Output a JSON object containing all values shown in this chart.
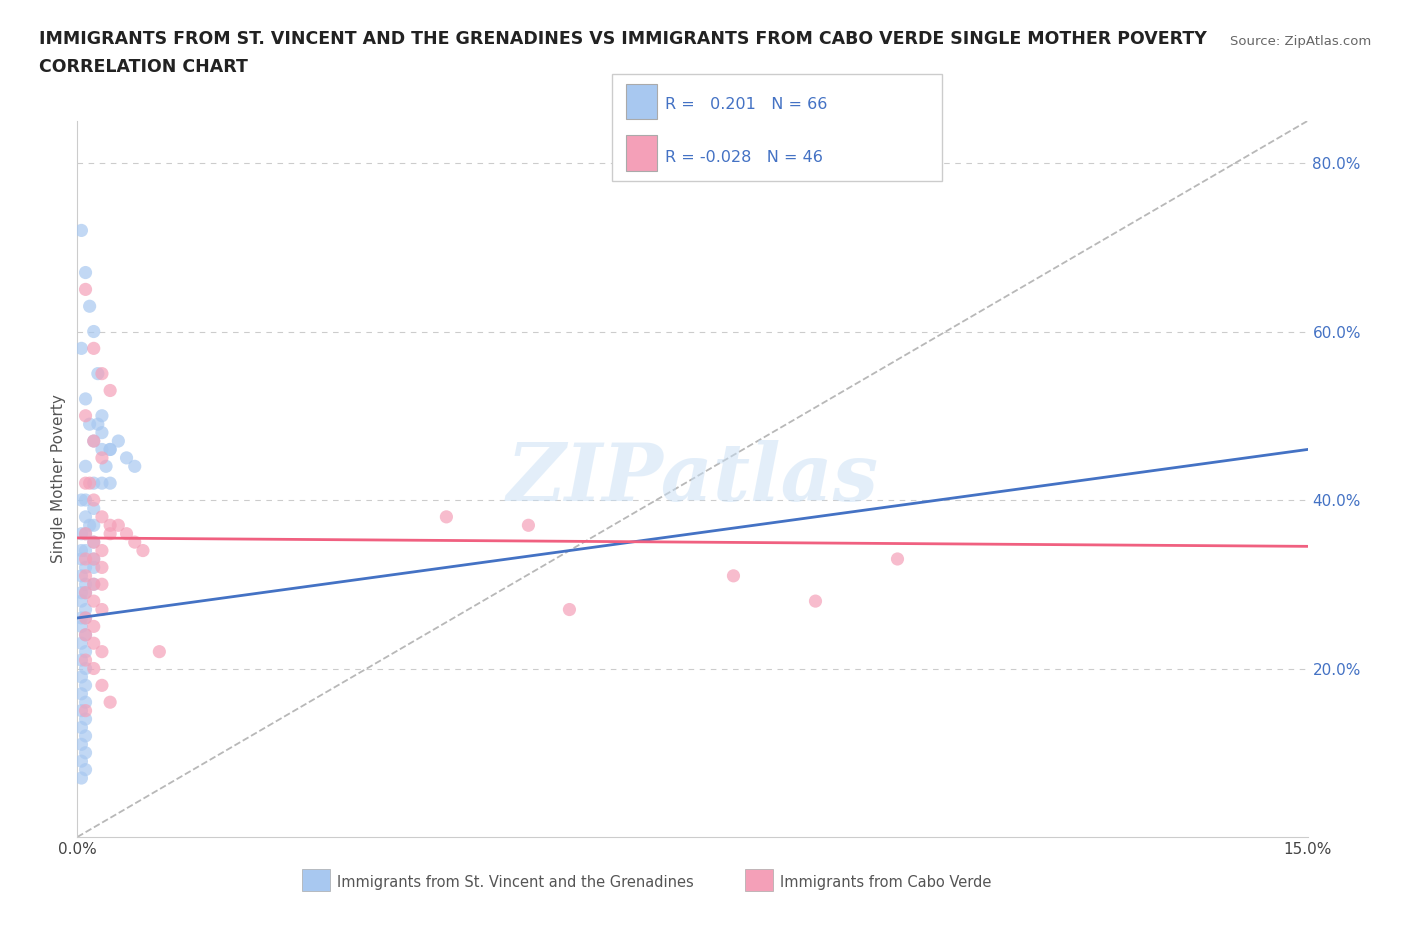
{
  "title_line1": "IMMIGRANTS FROM ST. VINCENT AND THE GRENADINES VS IMMIGRANTS FROM CABO VERDE SINGLE MOTHER POVERTY",
  "title_line2": "CORRELATION CHART",
  "source_text": "Source: ZipAtlas.com",
  "ylabel": "Single Mother Poverty",
  "xlim": [
    0.0,
    0.15
  ],
  "ylim": [
    0.0,
    0.85
  ],
  "watermark": "ZIPatlas",
  "legend1_label": "Immigrants from St. Vincent and the Grenadines",
  "legend2_label": "Immigrants from Cabo Verde",
  "r1": 0.201,
  "n1": 66,
  "r2": -0.028,
  "n2": 46,
  "color_blue": "#a8c8f0",
  "color_pink": "#f4a0b8",
  "color_blue_line": "#4472c4",
  "color_pink_line": "#f06080",
  "color_blue_text": "#4472c4",
  "grid_color": "#cccccc",
  "background_color": "#ffffff",
  "scatter_blue": [
    [
      0.0005,
      0.72
    ],
    [
      0.001,
      0.67
    ],
    [
      0.0015,
      0.63
    ],
    [
      0.002,
      0.6
    ],
    [
      0.0025,
      0.55
    ],
    [
      0.003,
      0.5
    ],
    [
      0.0005,
      0.58
    ],
    [
      0.001,
      0.52
    ],
    [
      0.0015,
      0.49
    ],
    [
      0.002,
      0.47
    ],
    [
      0.003,
      0.46
    ],
    [
      0.004,
      0.46
    ],
    [
      0.001,
      0.44
    ],
    [
      0.002,
      0.42
    ],
    [
      0.003,
      0.42
    ],
    [
      0.0005,
      0.4
    ],
    [
      0.001,
      0.4
    ],
    [
      0.002,
      0.39
    ],
    [
      0.001,
      0.38
    ],
    [
      0.0015,
      0.37
    ],
    [
      0.002,
      0.37
    ],
    [
      0.0005,
      0.36
    ],
    [
      0.001,
      0.36
    ],
    [
      0.002,
      0.35
    ],
    [
      0.0005,
      0.34
    ],
    [
      0.001,
      0.34
    ],
    [
      0.002,
      0.33
    ],
    [
      0.0005,
      0.33
    ],
    [
      0.001,
      0.32
    ],
    [
      0.002,
      0.32
    ],
    [
      0.0005,
      0.31
    ],
    [
      0.001,
      0.3
    ],
    [
      0.002,
      0.3
    ],
    [
      0.0005,
      0.29
    ],
    [
      0.001,
      0.29
    ],
    [
      0.0005,
      0.28
    ],
    [
      0.001,
      0.27
    ],
    [
      0.0005,
      0.26
    ],
    [
      0.001,
      0.26
    ],
    [
      0.0005,
      0.25
    ],
    [
      0.001,
      0.24
    ],
    [
      0.0005,
      0.23
    ],
    [
      0.001,
      0.22
    ],
    [
      0.0005,
      0.21
    ],
    [
      0.001,
      0.2
    ],
    [
      0.0005,
      0.19
    ],
    [
      0.001,
      0.18
    ],
    [
      0.0005,
      0.17
    ],
    [
      0.001,
      0.16
    ],
    [
      0.0005,
      0.15
    ],
    [
      0.001,
      0.14
    ],
    [
      0.0005,
      0.13
    ],
    [
      0.001,
      0.12
    ],
    [
      0.0005,
      0.11
    ],
    [
      0.001,
      0.1
    ],
    [
      0.0005,
      0.09
    ],
    [
      0.001,
      0.08
    ],
    [
      0.0005,
      0.07
    ],
    [
      0.003,
      0.48
    ],
    [
      0.004,
      0.46
    ],
    [
      0.005,
      0.47
    ],
    [
      0.006,
      0.45
    ],
    [
      0.007,
      0.44
    ],
    [
      0.0025,
      0.49
    ],
    [
      0.0035,
      0.44
    ],
    [
      0.004,
      0.42
    ]
  ],
  "scatter_pink": [
    [
      0.001,
      0.65
    ],
    [
      0.002,
      0.58
    ],
    [
      0.003,
      0.55
    ],
    [
      0.004,
      0.53
    ],
    [
      0.001,
      0.5
    ],
    [
      0.002,
      0.47
    ],
    [
      0.003,
      0.45
    ],
    [
      0.001,
      0.42
    ],
    [
      0.0015,
      0.42
    ],
    [
      0.002,
      0.4
    ],
    [
      0.003,
      0.38
    ],
    [
      0.004,
      0.37
    ],
    [
      0.001,
      0.36
    ],
    [
      0.002,
      0.35
    ],
    [
      0.003,
      0.34
    ],
    [
      0.001,
      0.33
    ],
    [
      0.002,
      0.33
    ],
    [
      0.003,
      0.32
    ],
    [
      0.001,
      0.31
    ],
    [
      0.002,
      0.3
    ],
    [
      0.003,
      0.3
    ],
    [
      0.001,
      0.29
    ],
    [
      0.002,
      0.28
    ],
    [
      0.003,
      0.27
    ],
    [
      0.001,
      0.26
    ],
    [
      0.002,
      0.25
    ],
    [
      0.001,
      0.24
    ],
    [
      0.002,
      0.23
    ],
    [
      0.003,
      0.22
    ],
    [
      0.001,
      0.21
    ],
    [
      0.002,
      0.2
    ],
    [
      0.003,
      0.18
    ],
    [
      0.004,
      0.16
    ],
    [
      0.001,
      0.15
    ],
    [
      0.005,
      0.37
    ],
    [
      0.006,
      0.36
    ],
    [
      0.007,
      0.35
    ],
    [
      0.008,
      0.34
    ],
    [
      0.004,
      0.36
    ],
    [
      0.06,
      0.27
    ],
    [
      0.08,
      0.31
    ],
    [
      0.09,
      0.28
    ],
    [
      0.1,
      0.33
    ],
    [
      0.055,
      0.37
    ],
    [
      0.045,
      0.38
    ],
    [
      0.01,
      0.22
    ]
  ],
  "blue_trend_x": [
    0.0,
    0.15
  ],
  "blue_trend_y": [
    0.26,
    0.46
  ],
  "pink_trend_x": [
    0.0,
    0.15
  ],
  "pink_trend_y": [
    0.355,
    0.345
  ]
}
